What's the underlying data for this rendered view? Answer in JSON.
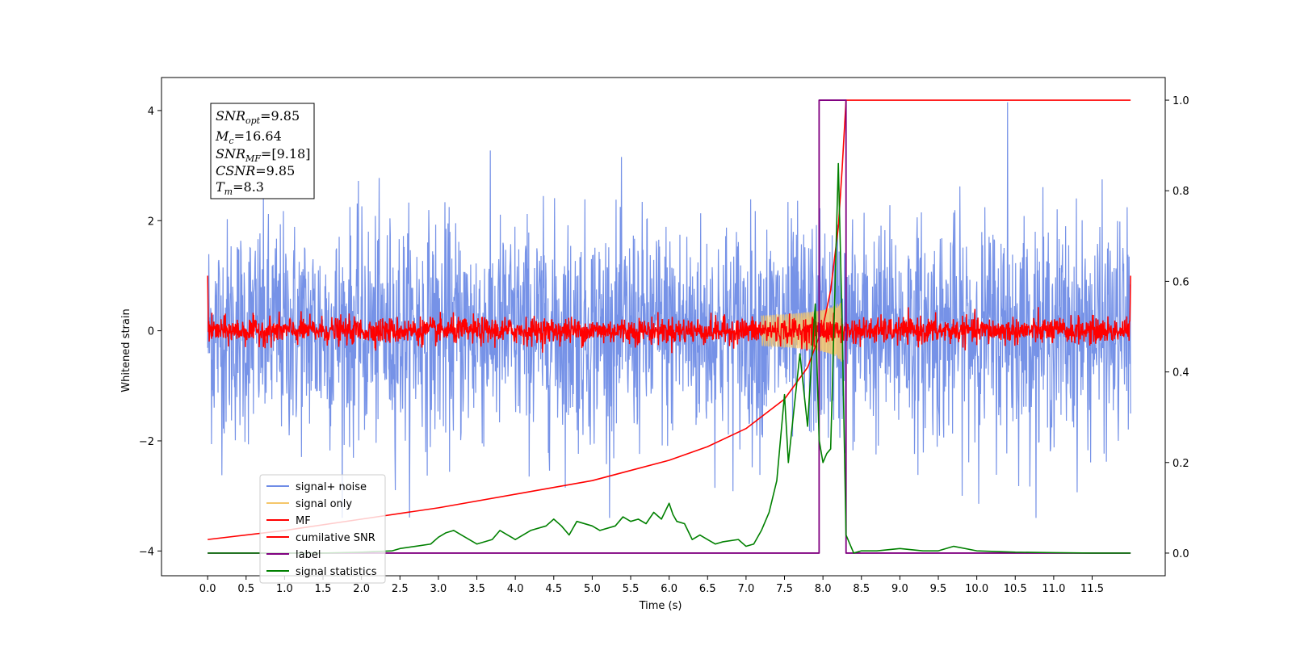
{
  "chart_data": {
    "type": "line",
    "xlabel": "Time (s)",
    "ylabel_left": "Whitened strain",
    "xlim": [
      -0.6,
      12.45
    ],
    "ylim_left": [
      -4.45,
      4.6
    ],
    "ylim_right": [
      -0.05,
      1.05
    ],
    "x_ticks": [
      "0.0",
      "0.5",
      "1.0",
      "1.5",
      "2.0",
      "2.5",
      "3.0",
      "3.5",
      "4.0",
      "4.5",
      "5.0",
      "5.5",
      "6.0",
      "6.5",
      "7.0",
      "7.5",
      "8.0",
      "8.5",
      "9.0",
      "9.5",
      "10.0",
      "10.5",
      "11.0",
      "11.5"
    ],
    "x_tick_values": [
      0,
      0.5,
      1,
      1.5,
      2,
      2.5,
      3,
      3.5,
      4,
      4.5,
      5,
      5.5,
      6,
      6.5,
      7,
      7.5,
      8,
      8.5,
      9,
      9.5,
      10,
      10.5,
      11,
      11.5
    ],
    "y_ticks_left": [
      "4",
      "2",
      "0",
      "−2",
      "−4"
    ],
    "y_tick_values_left": [
      4,
      2,
      0,
      -2,
      -4
    ],
    "y_ticks_right": [
      "1.0",
      "0.8",
      "0.6",
      "0.4",
      "0.2",
      "0.0"
    ],
    "y_tick_values_right": [
      1.0,
      0.8,
      0.6,
      0.4,
      0.2,
      0.0
    ],
    "legend_position": "lower-left",
    "annotation": {
      "snr_opt": {
        "base": "SNR",
        "sub": "opt",
        "value": "=9.85"
      },
      "mc": {
        "base": "M",
        "sub": "c",
        "value": "=16.64"
      },
      "snr_mf": {
        "base": "SNR",
        "sub": "MF",
        "value": "=[9.18]"
      },
      "csnr": {
        "base": "CSNR",
        "sub": "",
        "value": "=9.85"
      },
      "tm": {
        "base": "T",
        "sub": "m",
        "value": "=8.3"
      }
    },
    "series": [
      {
        "name": "signal+ noise",
        "color": "#6f8ce6",
        "axis": "left",
        "kind": "noise",
        "x_range": [
          0,
          12
        ],
        "std": 1.0,
        "amplitude_peak": 4.15,
        "peak_x": 10.4
      },
      {
        "name": "signal only",
        "color": "#f5c66a",
        "axis": "left",
        "kind": "chirp",
        "x_range": [
          7.2,
          8.3
        ],
        "peak_amplitude": 0.6,
        "merger_x": 8.25
      },
      {
        "name": "MF",
        "color": "#ff0000",
        "axis": "left",
        "kind": "mf_noise",
        "x_range": [
          0,
          12
        ],
        "std": 0.12,
        "edge_values": [
          1.0,
          1.0
        ]
      },
      {
        "name": "cumilative SNR",
        "color": "#ff0000",
        "axis": "right",
        "x": [
          0,
          1,
          2,
          3,
          4,
          5,
          6,
          6.5,
          7,
          7.5,
          7.8,
          8.0,
          8.1,
          8.2,
          8.25,
          8.3,
          9,
          10,
          11,
          12
        ],
        "y": [
          0.03,
          0.05,
          0.075,
          0.1,
          0.13,
          0.16,
          0.205,
          0.235,
          0.275,
          0.34,
          0.41,
          0.5,
          0.58,
          0.72,
          0.85,
          1.0,
          1.0,
          1.0,
          1.0,
          1.0
        ]
      },
      {
        "name": "label",
        "color": "#800080",
        "axis": "right",
        "x": [
          0,
          7.95,
          7.95,
          8.3,
          8.3,
          12
        ],
        "y": [
          0,
          0,
          1.0,
          1.0,
          0,
          0
        ]
      },
      {
        "name": "signal statistics",
        "color": "#008000",
        "axis": "right",
        "x": [
          0,
          0.5,
          1,
          1.5,
          2,
          2.4,
          2.5,
          2.7,
          2.9,
          3.0,
          3.1,
          3.2,
          3.3,
          3.5,
          3.7,
          3.8,
          3.9,
          4.0,
          4.1,
          4.2,
          4.4,
          4.5,
          4.6,
          4.7,
          4.8,
          5.0,
          5.1,
          5.3,
          5.4,
          5.5,
          5.6,
          5.7,
          5.8,
          5.9,
          6.0,
          6.05,
          6.1,
          6.2,
          6.3,
          6.4,
          6.5,
          6.6,
          6.7,
          6.9,
          7.0,
          7.1,
          7.2,
          7.3,
          7.4,
          7.5,
          7.55,
          7.6,
          7.7,
          7.75,
          7.8,
          7.85,
          7.9,
          7.95,
          8.0,
          8.05,
          8.1,
          8.2,
          8.25,
          8.3,
          8.4,
          8.5,
          8.7,
          9.0,
          9.3,
          9.5,
          9.7,
          10.0,
          10.5,
          11.0,
          11.5,
          12
        ],
        "y": [
          0.0,
          0.0,
          0.0,
          0.0,
          0.002,
          0.005,
          0.01,
          0.015,
          0.02,
          0.035,
          0.045,
          0.05,
          0.04,
          0.02,
          0.03,
          0.05,
          0.04,
          0.03,
          0.04,
          0.05,
          0.06,
          0.075,
          0.06,
          0.04,
          0.07,
          0.06,
          0.05,
          0.06,
          0.08,
          0.07,
          0.075,
          0.065,
          0.09,
          0.075,
          0.11,
          0.085,
          0.07,
          0.065,
          0.03,
          0.04,
          0.03,
          0.02,
          0.025,
          0.03,
          0.015,
          0.02,
          0.05,
          0.09,
          0.16,
          0.35,
          0.2,
          0.28,
          0.44,
          0.36,
          0.28,
          0.42,
          0.55,
          0.25,
          0.2,
          0.22,
          0.23,
          0.86,
          0.5,
          0.04,
          0.0,
          0.005,
          0.005,
          0.01,
          0.005,
          0.005,
          0.015,
          0.005,
          0.002,
          0.001,
          0.0,
          0.0
        ]
      }
    ]
  }
}
